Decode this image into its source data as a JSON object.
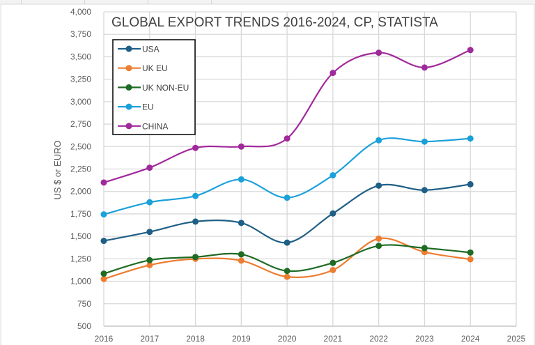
{
  "chart_data": {
    "type": "line",
    "title": "GLOBAL EXPORT TRENDS 2016-2024, CP, STATISTA",
    "xlabel": "",
    "ylabel": "US $ or EURO",
    "xlim": [
      2016,
      2025
    ],
    "ylim": [
      500,
      4000
    ],
    "x_ticks": [
      "2016",
      "2017",
      "2018",
      "2019",
      "2020",
      "2021",
      "2022",
      "2023",
      "2024",
      "2025"
    ],
    "y_ticks": [
      "500",
      "750",
      "1,000",
      "1,250",
      "1,500",
      "1,750",
      "2,000",
      "2,250",
      "2,500",
      "2,750",
      "3,000",
      "3,250",
      "3,500",
      "3,750",
      "4,000"
    ],
    "grid": true,
    "smooth": true,
    "legend_position": "top-left",
    "x": [
      2016,
      2017,
      2018,
      2019,
      2020,
      2021,
      2022,
      2023,
      2024
    ],
    "series": [
      {
        "name": "USA",
        "color": "#1f5f86",
        "values": [
          1450,
          1550,
          1665,
          1650,
          1430,
          1755,
          2065,
          2015,
          2080
        ]
      },
      {
        "name": "UK EU",
        "color": "#ed7d31",
        "values": [
          1025,
          1180,
          1250,
          1230,
          1050,
          1125,
          1475,
          1325,
          1245
        ]
      },
      {
        "name": "UK NON-EU",
        "color": "#1e6b23",
        "values": [
          1085,
          1235,
          1270,
          1300,
          1115,
          1205,
          1395,
          1370,
          1320
        ]
      },
      {
        "name": "EU",
        "color": "#1ba1d9",
        "values": [
          1745,
          1880,
          1950,
          2135,
          1930,
          2180,
          2570,
          2555,
          2590
        ]
      },
      {
        "name": "CHINA",
        "color": "#a0299b",
        "values": [
          2100,
          2265,
          2485,
          2500,
          2590,
          3320,
          3545,
          3380,
          3575
        ]
      }
    ]
  }
}
